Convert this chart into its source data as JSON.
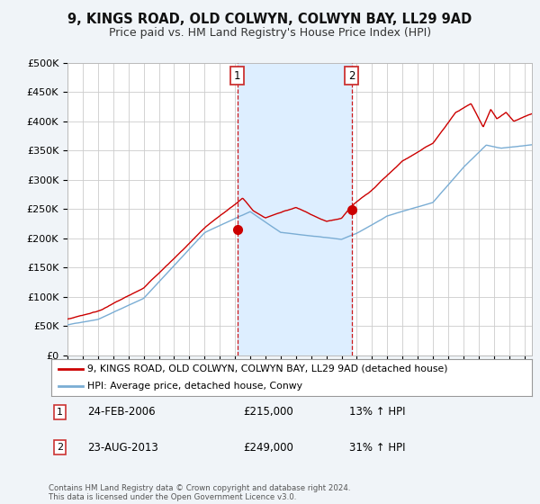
{
  "title": "9, KINGS ROAD, OLD COLWYN, COLWYN BAY, LL29 9AD",
  "subtitle": "Price paid vs. HM Land Registry's House Price Index (HPI)",
  "ylabel_ticks": [
    "£0",
    "£50K",
    "£100K",
    "£150K",
    "£200K",
    "£250K",
    "£300K",
    "£350K",
    "£400K",
    "£450K",
    "£500K"
  ],
  "ylim": [
    0,
    500000
  ],
  "xlim_start": 1995.0,
  "xlim_end": 2025.5,
  "transaction1_x": 2006.15,
  "transaction1_y": 215000,
  "transaction1_label": "1",
  "transaction2_x": 2013.65,
  "transaction2_y": 249000,
  "transaction2_label": "2",
  "legend_house_label": "9, KINGS ROAD, OLD COLWYN, COLWYN BAY, LL29 9AD (detached house)",
  "legend_hpi_label": "HPI: Average price, detached house, Conwy",
  "house_color": "#cc0000",
  "hpi_color": "#7aadd4",
  "shade_color": "#ddeeff",
  "annotation1_date": "24-FEB-2006",
  "annotation1_price": "£215,000",
  "annotation1_hpi": "13% ↑ HPI",
  "annotation2_date": "23-AUG-2013",
  "annotation2_price": "£249,000",
  "annotation2_hpi": "31% ↑ HPI",
  "footer": "Contains HM Land Registry data © Crown copyright and database right 2024.\nThis data is licensed under the Open Government Licence v3.0.",
  "background_color": "#f0f4f8",
  "plot_bg_color": "#ffffff"
}
